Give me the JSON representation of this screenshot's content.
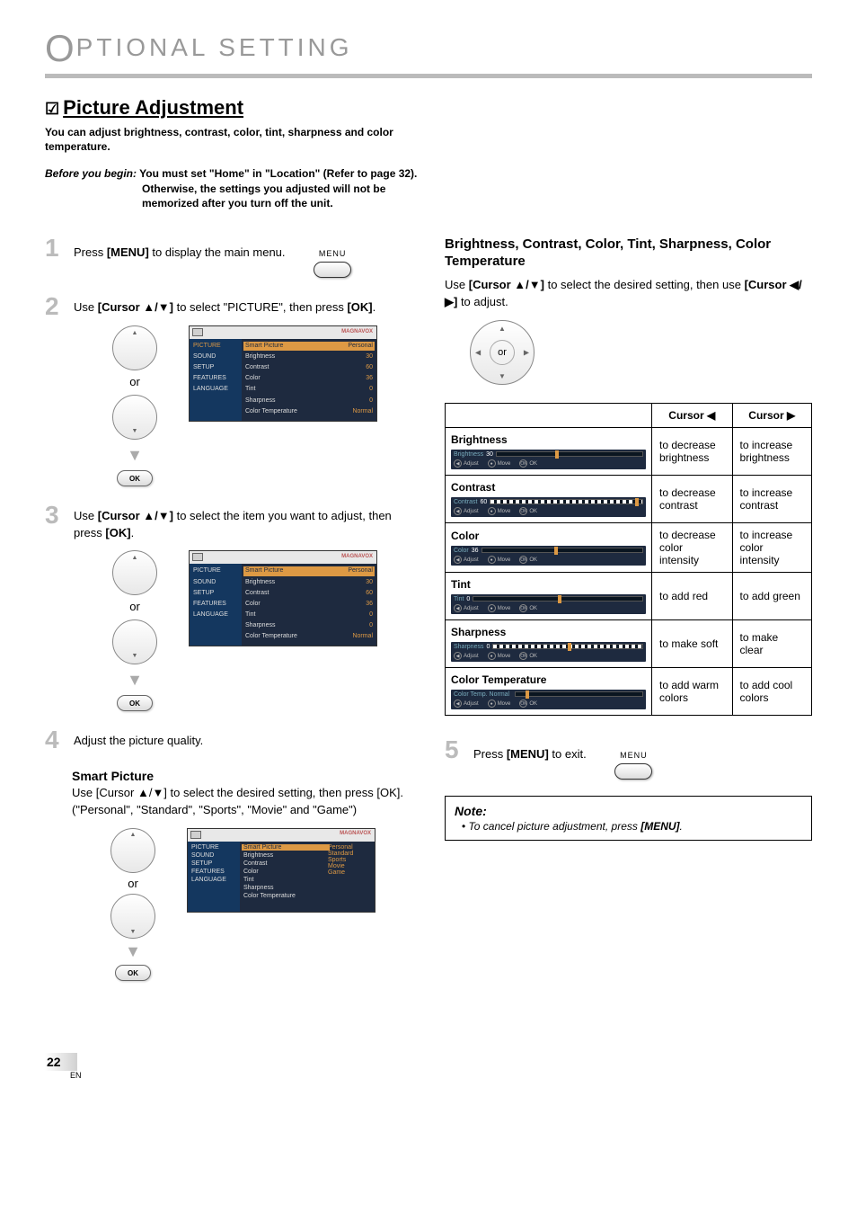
{
  "page_title_letter": "O",
  "page_title_rest": "PTIONAL SETTING",
  "section": {
    "checkmark": "☑",
    "title": "Picture Adjustment",
    "intro": "You can adjust brightness, contrast, color, tint, sharpness and color temperature.",
    "before_label": "Before you begin:",
    "before_text": " You must set \"Home\" in \"Location\" (Refer to page 32).",
    "before_cont1": "Otherwise, the settings you adjusted will not be",
    "before_cont2": "memorized after you turn off the unit."
  },
  "steps": {
    "s1": {
      "num": "1",
      "pre": "Press ",
      "btn": "[MENU]",
      "post": " to display the main menu.",
      "menu_label": "MENU"
    },
    "s2": {
      "num": "2",
      "pre": "Use ",
      "btn": "[Cursor ▲/▼]",
      "mid": " to select \"PICTURE\", then press ",
      "btn2": "[OK]",
      "post": ".",
      "or": "or",
      "ok": "OK"
    },
    "s3": {
      "num": "3",
      "pre": "Use ",
      "btn": "[Cursor ▲/▼]",
      "mid": " to select the item you want to adjust, then press ",
      "btn2": "[OK]",
      "post": ".",
      "or": "or",
      "ok": "OK"
    },
    "s4": {
      "num": "4",
      "text": "Adjust the picture quality."
    },
    "s5": {
      "num": "5",
      "pre": "Press ",
      "btn": "[MENU]",
      "post": " to exit.",
      "menu_label": "MENU"
    }
  },
  "smart_picture": {
    "heading": "Smart Picture",
    "line1a": "Use ",
    "line1b": "[Cursor ▲/▼]",
    "line1c": " to select the desired setting, then press ",
    "line1d": "[OK]",
    "line1e": ".",
    "line2": "(\"Personal\", \"Standard\", \"Sports\", \"Movie\" and \"Game\")",
    "or": "or",
    "ok": "OK"
  },
  "osd": {
    "brand": "MAGNAVOX",
    "menus": [
      "PICTURE",
      "SOUND",
      "SETUP",
      "FEATURES",
      "LANGUAGE"
    ],
    "items": [
      {
        "l": "Smart Picture",
        "v": "Personal"
      },
      {
        "l": "Brightness",
        "v": "30"
      },
      {
        "l": "Contrast",
        "v": "60"
      },
      {
        "l": "Color",
        "v": "36"
      },
      {
        "l": "Tint",
        "v": "0"
      },
      {
        "l": "Sharpness",
        "v": "0"
      },
      {
        "l": "Color Temperature",
        "v": "Normal"
      }
    ],
    "smart_options": [
      "Personal",
      "Standard",
      "Sports",
      "Movie",
      "Game"
    ]
  },
  "right": {
    "heading": "Brightness, Contrast, Color, Tint, Sharpness, Color Temperature",
    "line_a": "Use ",
    "line_b": "[Cursor ▲/▼]",
    "line_c": " to select the desired setting, then use ",
    "line_d": "[Cursor ◀/▶]",
    "line_e": " to adjust.",
    "or": "or"
  },
  "table": {
    "h_left": "Cursor ◀",
    "h_right": "Cursor ▶",
    "rows": [
      {
        "name": "Brightness",
        "osd_name": "Brightness",
        "osd_val": "30",
        "thumb": 40,
        "seg": false,
        "left": "to decrease brightness",
        "right": "to increase brightness"
      },
      {
        "name": "Contrast",
        "osd_name": "Contrast",
        "osd_val": "60",
        "thumb": 95,
        "seg": true,
        "left": "to decrease contrast",
        "right": "to increase contrast"
      },
      {
        "name": "Color",
        "osd_name": "Color",
        "osd_val": "36",
        "thumb": 45,
        "seg": false,
        "left": "to decrease\ncolor intensity",
        "right": "to increase\ncolor intensity"
      },
      {
        "name": "Tint",
        "osd_name": "Tint",
        "osd_val": "0",
        "thumb": 50,
        "seg": false,
        "left": "to add red",
        "right": "to add green"
      },
      {
        "name": "Sharpness",
        "osd_name": "Sharpness",
        "osd_val": "0",
        "thumb": 50,
        "seg": true,
        "left": "to make soft",
        "right": "to make clear"
      },
      {
        "name": "Color Temperature",
        "osd_name": "Color Temp. Normal",
        "osd_val": "",
        "thumb": 8,
        "seg": false,
        "left": "to add warm colors",
        "right": "to add cool colors"
      }
    ],
    "osd_footer": {
      "adjust": "Adjust",
      "move": "Move",
      "ok": "OK"
    }
  },
  "note": {
    "heading": "Note:",
    "line_a": "To cancel picture adjustment, press ",
    "line_b": "[MENU]",
    "line_c": "."
  },
  "page": {
    "num": "22",
    "lang": "EN"
  },
  "colors": {
    "osd_bg": "#1e2a3f",
    "osd_left_bg": "#14375f",
    "highlight": "#d94",
    "gray_title": "#999"
  }
}
